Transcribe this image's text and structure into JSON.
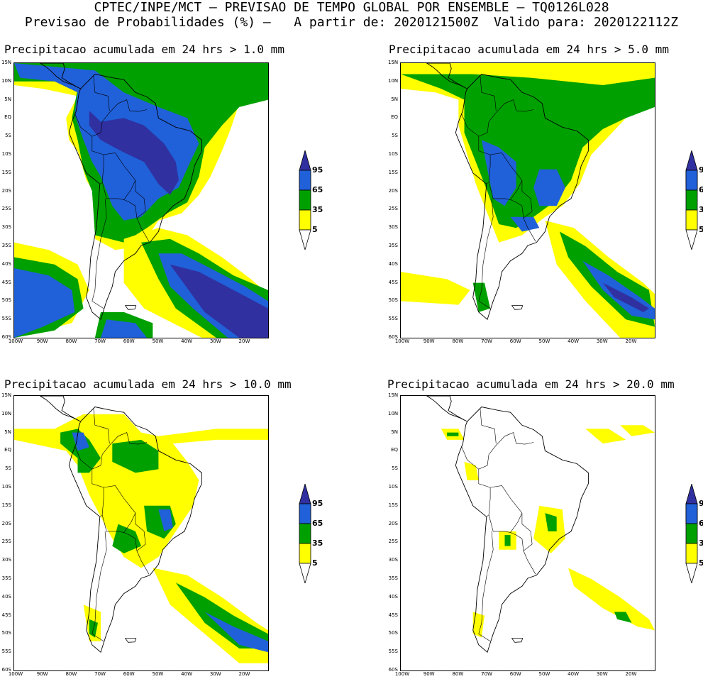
{
  "header": {
    "line1": "CPTEC/INPE/MCT – PREVISAO DE TEMPO GLOBAL POR ENSEMBLE – TQ0126L028",
    "line2": "Previsao de Probabilidades (%) –   A partir de: 2020121500Z  Valido para: 2020122112Z"
  },
  "panels": [
    {
      "title": "Precipitacao acumulada em 24 hrs > 1.0 mm"
    },
    {
      "title": "Precipitacao acumulada em 24 hrs > 5.0 mm"
    },
    {
      "title": "Precipitacao acumulada em 24 hrs > 10.0 mm"
    },
    {
      "title": "Precipitacao acumulada em 24 hrs > 20.0 mm"
    }
  ],
  "lat_labels": [
    "15N",
    "10N",
    "5N",
    "EQ",
    "5S",
    "10S",
    "15S",
    "20S",
    "25S",
    "30S",
    "35S",
    "40S",
    "45S",
    "50S",
    "55S",
    "60S"
  ],
  "lon_labels": [
    "100W",
    "90W",
    "80W",
    "70W",
    "60W",
    "50W",
    "40W",
    "30W",
    "20W"
  ],
  "legend": {
    "thresholds": [
      "95",
      "65",
      "35",
      "5"
    ],
    "colors": {
      "yellow": "#ffff00",
      "green": "#00a000",
      "blue": "#2060d8",
      "dark": "#3030a0"
    }
  }
}
